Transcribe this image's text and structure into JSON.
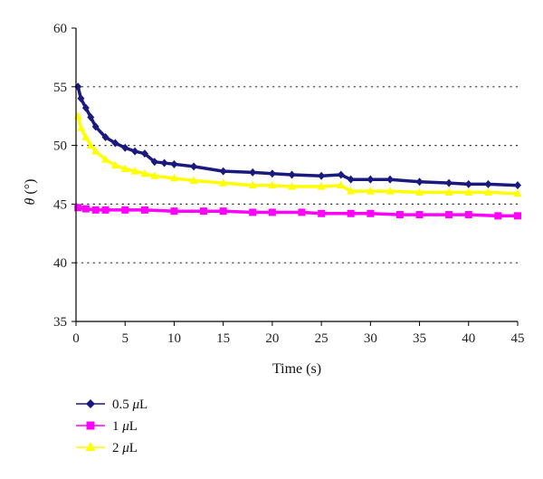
{
  "chart_data": {
    "type": "scatter",
    "title": "",
    "xlabel": "Time (s)",
    "ylabel": {
      "symbol": "θ",
      "unit": " (°)"
    },
    "xlim": [
      0,
      45
    ],
    "ylim": [
      35,
      60
    ],
    "xticks": [
      "0",
      "5",
      "10",
      "15",
      "20",
      "25",
      "30",
      "35",
      "40",
      "45"
    ],
    "yticks": [
      "35",
      "40",
      "45",
      "50",
      "55",
      "60"
    ],
    "grid": "horizontal-dotted",
    "legend_position": "bottom-left",
    "series": [
      {
        "name": {
          "value": "0.5 ",
          "unit": "μ",
          "suffix": "L"
        },
        "marker": "diamond",
        "color": "#1a1a7e",
        "x": [
          0.2,
          0.5,
          1,
          1.5,
          2,
          3,
          4,
          5,
          6,
          7,
          8,
          9,
          10,
          12,
          15,
          18,
          20,
          22,
          25,
          27,
          28,
          30,
          32,
          35,
          38,
          40,
          42,
          45
        ],
        "y": [
          55.0,
          54.0,
          53.2,
          52.4,
          51.6,
          50.7,
          50.2,
          49.8,
          49.5,
          49.3,
          48.6,
          48.5,
          48.4,
          48.2,
          47.8,
          47.7,
          47.6,
          47.5,
          47.4,
          47.5,
          47.1,
          47.1,
          47.1,
          46.9,
          46.8,
          46.7,
          46.7,
          46.6
        ]
      },
      {
        "name": {
          "value": "1 ",
          "unit": "μ",
          "suffix": "L"
        },
        "marker": "square",
        "color": "#ff00ff",
        "x": [
          0.2,
          1,
          2,
          3,
          5,
          7,
          10,
          13,
          15,
          18,
          20,
          23,
          25,
          28,
          30,
          33,
          35,
          38,
          40,
          43,
          45
        ],
        "y": [
          44.7,
          44.6,
          44.5,
          44.5,
          44.5,
          44.5,
          44.4,
          44.4,
          44.4,
          44.3,
          44.3,
          44.3,
          44.2,
          44.2,
          44.2,
          44.1,
          44.1,
          44.1,
          44.1,
          44.0,
          44.0
        ]
      },
      {
        "name": {
          "value": "2 ",
          "unit": "μ",
          "suffix": "L"
        },
        "marker": "triangle",
        "color": "#ffff00",
        "x": [
          0.2,
          0.5,
          1,
          1.5,
          2,
          3,
          4,
          5,
          6,
          7,
          8,
          10,
          12,
          15,
          18,
          20,
          22,
          25,
          27,
          28,
          30,
          32,
          35,
          38,
          40,
          42,
          45
        ],
        "y": [
          52.5,
          51.5,
          50.7,
          50.0,
          49.5,
          48.8,
          48.3,
          48.0,
          47.8,
          47.6,
          47.4,
          47.2,
          47.0,
          46.8,
          46.6,
          46.6,
          46.5,
          46.5,
          46.6,
          46.1,
          46.1,
          46.1,
          46.0,
          46.0,
          46.0,
          46.0,
          45.9
        ]
      }
    ]
  }
}
